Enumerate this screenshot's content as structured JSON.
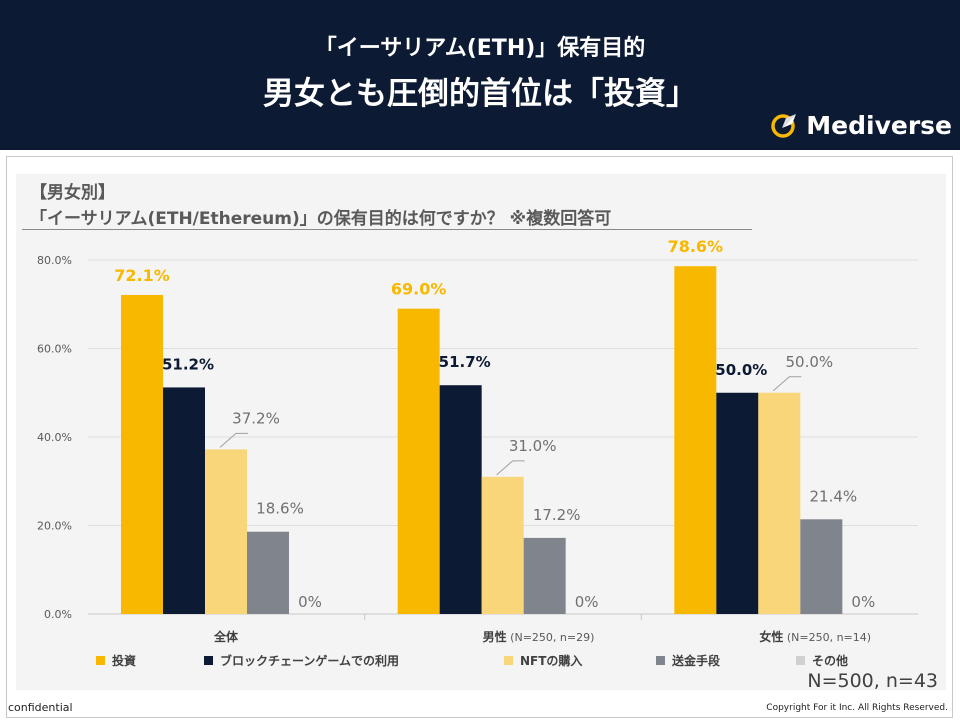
{
  "header": {
    "title_line1": "「イーサリアム(ETH)」保有目的",
    "title_line2": "男女とも圧倒的首位は「投資」",
    "logo_text": "Mediverse"
  },
  "chart_heading": {
    "line1": "【男女別】",
    "line2": "「イーサリアム(ETH/Ethereum)」の保有目的は何ですか？ ※複数回答可"
  },
  "chart_data": {
    "type": "bar",
    "categories": [
      "全体",
      "男性",
      "女性"
    ],
    "category_notes": [
      "",
      "(N=250, n=29)",
      "(N=250, n=14)"
    ],
    "ylim": [
      0,
      80
    ],
    "yticks": [
      "0.0%",
      "20.0%",
      "40.0%",
      "60.0%",
      "80.0%"
    ],
    "grid": true,
    "series": [
      {
        "name": "投資",
        "color": "#f9b800",
        "values": [
          72.1,
          69.0,
          78.6
        ],
        "labels": [
          "72.1%",
          "69.0%",
          "78.6%"
        ]
      },
      {
        "name": "ブロックチェーンゲームでの利用",
        "color": "#0c1a33",
        "values": [
          51.2,
          51.7,
          50.0
        ],
        "labels": [
          "51.2%",
          "51.7%",
          "50.0%"
        ]
      },
      {
        "name": "NFTの購入",
        "color": "#fad67a",
        "values": [
          37.2,
          31.0,
          50.0
        ],
        "labels": [
          "37.2%",
          "31.0%",
          "50.0%"
        ]
      },
      {
        "name": "送金手段",
        "color": "#80848c",
        "values": [
          18.6,
          17.2,
          21.4
        ],
        "labels": [
          "18.6%",
          "17.2%",
          "21.4%"
        ]
      },
      {
        "name": "その他",
        "color": "#d0d0d0",
        "values": [
          0,
          0,
          0
        ],
        "labels": [
          "0%",
          "0%",
          "0%"
        ]
      }
    ]
  },
  "footer": {
    "sample_size": "N=500, n=43",
    "confidential": "confidential",
    "copyright": "Copyright For it Inc. All Rights Reserved."
  }
}
